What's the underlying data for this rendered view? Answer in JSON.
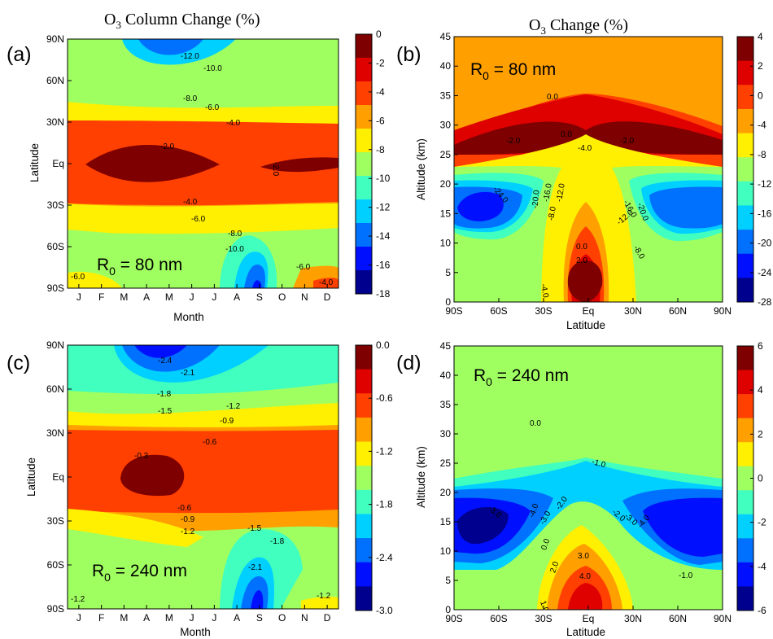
{
  "titles": {
    "left": {
      "main": "O",
      "sub": "3",
      "rest": " Column Change (%)"
    },
    "right": {
      "main": "O",
      "sub": "3",
      "rest": " Change (%)"
    }
  },
  "chart_data": [
    {
      "id": "a",
      "type": "heatmap",
      "panel_label": "(a)",
      "annotation": {
        "text": "R",
        "sub": "0",
        "rest": " = 80 nm"
      },
      "xlabel": "Month",
      "ylabel": "Latitude",
      "x_ticks": [
        "J",
        "F",
        "M",
        "A",
        "M",
        "J",
        "J",
        "A",
        "S",
        "O",
        "N",
        "D"
      ],
      "y_ticks": [
        "90N",
        "60N",
        "30N",
        "Eq",
        "30S",
        "60S",
        "90S"
      ],
      "colorbar_ticks": [
        "0",
        "-2",
        "-4",
        "-6",
        "-8",
        "-10",
        "-12",
        "-14",
        "-16",
        "-18"
      ],
      "colorbar_range": [
        -18,
        0
      ],
      "colors": [
        "#00008f",
        "#0010ff",
        "#0070ff",
        "#00d0ff",
        "#40ffbf",
        "#a0ff60",
        "#ffef00",
        "#ff9f00",
        "#ff4000",
        "#df0000",
        "#7f0000"
      ],
      "contour_labels": [
        "-12.0",
        "-10.0",
        "-8.0",
        "-6.0",
        "-4.0",
        "-2.0",
        "-2.0",
        "-4.0",
        "-6.0",
        "-8.0",
        "-10.0",
        "-6.0",
        "-6.0",
        "-4.0"
      ]
    },
    {
      "id": "b",
      "type": "heatmap",
      "panel_label": "(b)",
      "annotation": {
        "text": "R",
        "sub": "0",
        "rest": " = 80 nm"
      },
      "xlabel": "Latitude",
      "ylabel": "Altitude (km)",
      "x_ticks": [
        "90S",
        "60S",
        "30S",
        "Eq",
        "30N",
        "60N",
        "90N"
      ],
      "y_ticks": [
        "0",
        "5",
        "10",
        "15",
        "20",
        "25",
        "30",
        "35",
        "40",
        "45"
      ],
      "colorbar_ticks": [
        "4",
        "2",
        "0",
        "-4",
        "-8",
        "-12",
        "-16",
        "-20",
        "-24",
        "-28"
      ],
      "colorbar_range": [
        -28,
        4
      ],
      "contour_labels": [
        "0.0",
        "-2.0",
        "0.0",
        "-4.0",
        "-2.0",
        "-24.0",
        "-20.0",
        "-16.0",
        "-12.0",
        "-8.0",
        "0.0",
        "-16.0",
        "-20.0",
        "-12.0",
        "-8.0",
        "2.0",
        "-4.0"
      ]
    },
    {
      "id": "c",
      "type": "heatmap",
      "panel_label": "(c)",
      "annotation": {
        "text": "R",
        "sub": "0",
        "rest": " = 240 nm"
      },
      "xlabel": "Month",
      "ylabel": "Latitude",
      "x_ticks": [
        "J",
        "F",
        "M",
        "A",
        "M",
        "J",
        "J",
        "A",
        "S",
        "O",
        "N",
        "D"
      ],
      "y_ticks": [
        "90N",
        "60N",
        "30N",
        "Eq",
        "30S",
        "60S",
        "90S"
      ],
      "colorbar_ticks": [
        "0.0",
        "-0.6",
        "-1.2",
        "-1.8",
        "-2.4",
        "-3.0"
      ],
      "colorbar_range": [
        -3.0,
        0.0
      ],
      "contour_labels": [
        "-2.4",
        "-2.1",
        "-1.8",
        "-1.5",
        "-1.2",
        "-0.9",
        "-0.6",
        "-0.3",
        "-0.6",
        "-0.9",
        "-1.2",
        "-1.5",
        "-1.8",
        "-2.1",
        "-1.2",
        "-1.2"
      ]
    },
    {
      "id": "d",
      "type": "heatmap",
      "panel_label": "(d)",
      "annotation": {
        "text": "R",
        "sub": "0",
        "rest": " = 240 nm"
      },
      "xlabel": "Latitude",
      "ylabel": "Altitude (km)",
      "x_ticks": [
        "90S",
        "60S",
        "30S",
        "Eq",
        "30N",
        "60N",
        "90N"
      ],
      "y_ticks": [
        "0",
        "5",
        "10",
        "15",
        "20",
        "25",
        "30",
        "35",
        "40",
        "45"
      ],
      "colorbar_ticks": [
        "6",
        "4",
        "2",
        "0",
        "-2",
        "-4",
        "-6"
      ],
      "colorbar_range": [
        -6,
        6
      ],
      "contour_labels": [
        "0.0",
        "-1.0",
        "-3.0",
        "-4.0",
        "-3.0",
        "-2.0",
        "-2.0",
        "-3.0",
        "-4.0",
        "-1.0",
        "0.0",
        "2.0",
        "3.0",
        "4.0",
        "1.0"
      ]
    }
  ]
}
